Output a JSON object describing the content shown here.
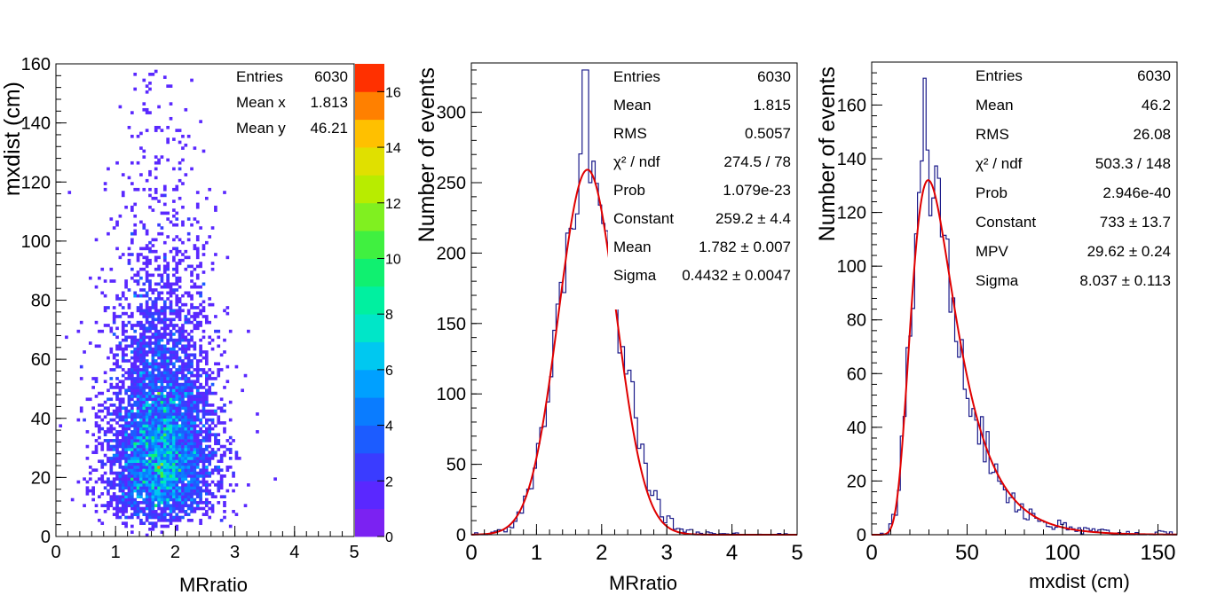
{
  "colors": {
    "hist_line": "#1a1a8a",
    "fit_line": "#e00000",
    "axis": "#000000",
    "palette": [
      "#7b22f2",
      "#5a28ff",
      "#3a3cff",
      "#1c5cff",
      "#0a7cff",
      "#00a0ff",
      "#00c8f0",
      "#00e6c8",
      "#00f0a0",
      "#10f070",
      "#40f040",
      "#80f020",
      "#b8ec00",
      "#e0e000",
      "#ffc000",
      "#ff8000",
      "#ff3000"
    ]
  },
  "chart_data": [
    {
      "id": "scatter2d",
      "type": "heatmap",
      "xlabel": "MRratio",
      "ylabel": "mxdist (cm)",
      "xlim": [
        0,
        5
      ],
      "ylim": [
        0,
        160
      ],
      "xticks": [
        "0",
        "1",
        "2",
        "3",
        "4",
        "5"
      ],
      "yticks": [
        "0",
        "20",
        "40",
        "60",
        "80",
        "100",
        "120",
        "140",
        "160"
      ],
      "zlim": [
        0,
        17
      ],
      "zticks": [
        "0",
        "2",
        "4",
        "6",
        "8",
        "10",
        "12",
        "14",
        "16"
      ],
      "distribution": {
        "x_mean": 1.813,
        "y_mean": 46.21,
        "x_sigma": 0.45,
        "y_mode": 30,
        "entries": 6030
      },
      "stats": [
        {
          "label": "Entries",
          "value": "6030"
        },
        {
          "label": "Mean x",
          "value": "1.813"
        },
        {
          "label": "Mean y",
          "value": "46.21"
        }
      ]
    },
    {
      "id": "mrratio",
      "type": "line",
      "xlabel": "MRratio",
      "ylabel": "Number of events",
      "xlim": [
        0,
        5
      ],
      "ylim": [
        0,
        335
      ],
      "xticks": [
        "0",
        "1",
        "2",
        "3",
        "4",
        "5"
      ],
      "yticks": [
        "0",
        "50",
        "100",
        "150",
        "200",
        "250",
        "300"
      ],
      "fit": {
        "function": "gaus",
        "constant": 259.2,
        "mean": 1.782,
        "sigma": 0.4432
      },
      "bins": {
        "start": 0,
        "width": 0.05,
        "peak_x": 1.75,
        "peak_value": 330
      },
      "stats": [
        {
          "label": "Entries",
          "value": "6030"
        },
        {
          "label": "Mean",
          "value": "1.815"
        },
        {
          "label": "RMS",
          "value": "0.5057"
        },
        {
          "label": "χ² / ndf",
          "value": "274.5 / 78"
        },
        {
          "label": "Prob",
          "value": "1.079e-23"
        },
        {
          "label": "Constant",
          "value": "259.2 ± 4.4"
        },
        {
          "label": "Mean",
          "value": "1.782 ± 0.007"
        },
        {
          "label": "Sigma",
          "value": "0.4432 ± 0.0047"
        }
      ]
    },
    {
      "id": "mxdist",
      "type": "line",
      "xlabel": "mxdist (cm)",
      "ylabel": "Number of events",
      "xlim": [
        0,
        160
      ],
      "ylim": [
        0,
        176
      ],
      "xticks": [
        "0",
        "50",
        "100",
        "150"
      ],
      "yticks": [
        "0",
        "20",
        "40",
        "60",
        "80",
        "100",
        "120",
        "140",
        "160"
      ],
      "fit": {
        "function": "landau",
        "constant": 733,
        "mpv": 29.62,
        "sigma": 8.037
      },
      "bins": {
        "start": 0,
        "width": 1.5,
        "peak_x": 28,
        "peak_value": 170
      },
      "stats": [
        {
          "label": "Entries",
          "value": "6030"
        },
        {
          "label": "Mean",
          "value": "46.2"
        },
        {
          "label": "RMS",
          "value": "26.08"
        },
        {
          "label": "χ² / ndf",
          "value": "503.3 / 148"
        },
        {
          "label": "Prob",
          "value": "2.946e-40"
        },
        {
          "label": "Constant",
          "value": "733 ± 13.7"
        },
        {
          "label": "MPV",
          "value": "29.62 ± 0.24"
        },
        {
          "label": "Sigma",
          "value": "8.037 ± 0.113"
        }
      ]
    }
  ]
}
